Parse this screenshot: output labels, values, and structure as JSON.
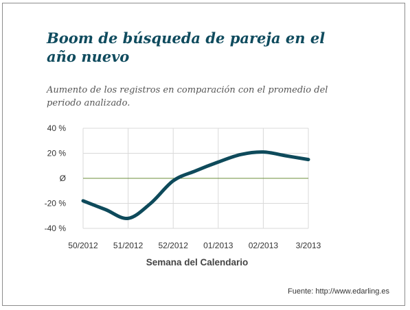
{
  "title": "Boom de búsqueda de pareja en el año nuevo",
  "subtitle": "Aumento de los registros en comparación con el promedio del periodo analizado.",
  "source": "Fuente: http://www.edarling.es",
  "colors": {
    "title": "#0f4b5e",
    "line": "#0e4a5b",
    "zero_line": "#6b8c3a",
    "grid": "#d9d9d9"
  },
  "chart_data": {
    "type": "line",
    "title": "Boom de búsqueda de pareja en el año nuevo",
    "subtitle": "Aumento de los registros en comparación con el promedio del periodo analizado.",
    "xlabel": "Semana del Calendario",
    "ylabel": "",
    "categories": [
      "50/2012",
      "51/2012",
      "52/2012",
      "01/2013",
      "02/2013",
      "3/2013"
    ],
    "y_ticks": [
      "40 %",
      "20 %",
      "Ø",
      "-20 %",
      "-40 %"
    ],
    "y_tick_values": [
      40,
      20,
      0,
      -20,
      -40
    ],
    "ylim": [
      -40,
      40
    ],
    "grid": true,
    "series": [
      {
        "x": [
          0,
          0.5,
          1,
          1.5,
          2,
          2.5,
          3,
          3.5,
          4,
          4.5,
          5
        ],
        "values": [
          -18,
          -25,
          -32,
          -20,
          -2,
          6,
          13,
          19,
          21,
          18,
          15
        ]
      }
    ]
  }
}
